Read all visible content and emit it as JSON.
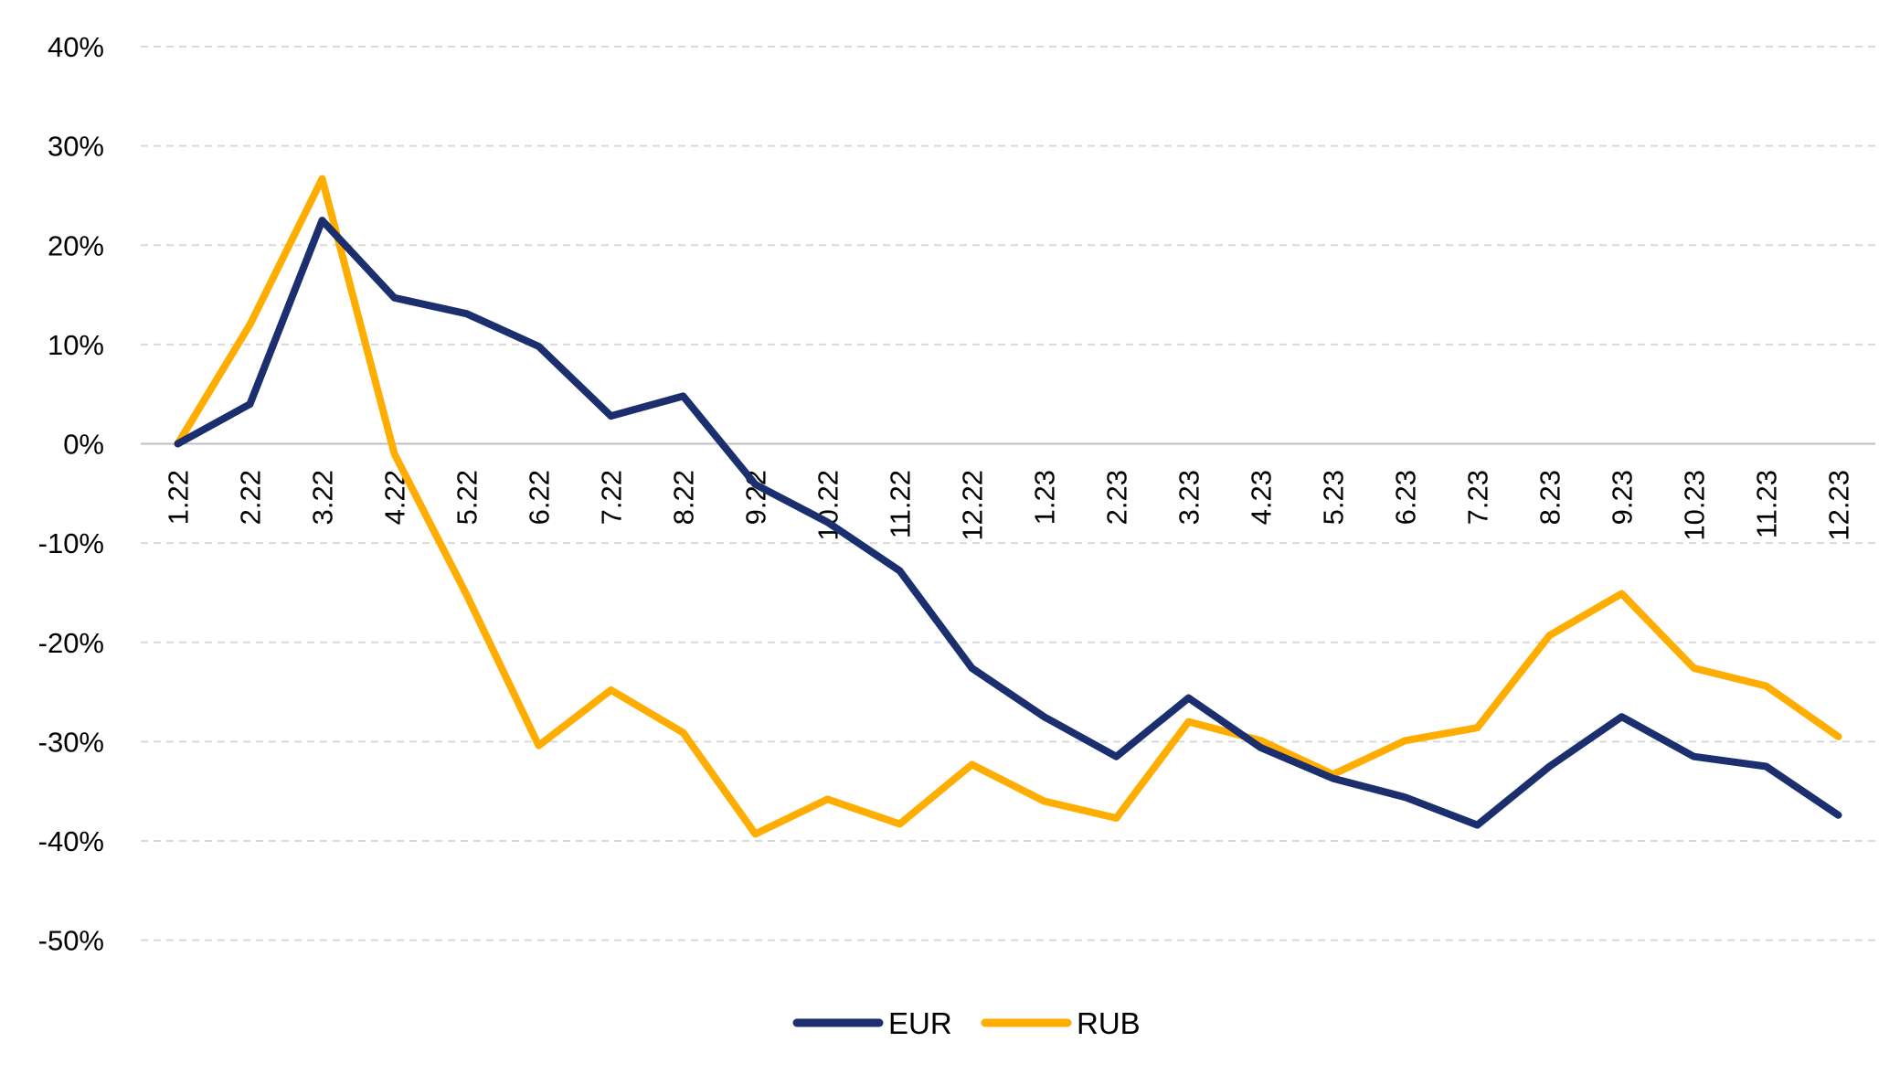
{
  "chart_data": {
    "type": "line",
    "title": "",
    "xlabel": "",
    "ylabel": "",
    "ylim": [
      -50,
      40
    ],
    "yticks": [
      "40%",
      "30%",
      "20%",
      "10%",
      "0%",
      "-10%",
      "-20%",
      "-30%",
      "-40%",
      "-50%"
    ],
    "ytick_values": [
      40,
      30,
      20,
      10,
      0,
      -10,
      -20,
      -30,
      -40,
      -50
    ],
    "grid": "horizontal dashed",
    "legend_position": "bottom",
    "categories": [
      "1.22",
      "2.22",
      "3.22",
      "4.22",
      "5.22",
      "6.22",
      "7.22",
      "8.22",
      "9.22",
      "10.22",
      "11.22",
      "12.22",
      "1.23",
      "2.23",
      "3.23",
      "4.23",
      "5.23",
      "6.23",
      "7.23",
      "8.23",
      "9.23",
      "10.23",
      "11.23",
      "12.23"
    ],
    "series": [
      {
        "name": "EUR",
        "color": "#1B2F6E",
        "values": [
          0,
          4,
          22.5,
          14.7,
          13.1,
          9.8,
          2.8,
          4.8,
          -4.1,
          -7.9,
          -12.8,
          -22.6,
          -27.5,
          -31.5,
          -25.6,
          -30.6,
          -33.7,
          -35.6,
          -38.4,
          -32.5,
          -27.5,
          -31.5,
          -32.5,
          -37.4
        ]
      },
      {
        "name": "RUB",
        "color": "#FFAD00",
        "values": [
          0,
          12,
          26.7,
          -1,
          -15.2,
          -30.4,
          -24.8,
          -29.1,
          -39.3,
          -35.8,
          -38.3,
          -32.3,
          -36,
          -37.7,
          -28,
          -29.9,
          -33.3,
          -29.9,
          -28.6,
          -19.3,
          -15.1,
          -22.6,
          -24.4,
          -29.5
        ]
      }
    ]
  }
}
